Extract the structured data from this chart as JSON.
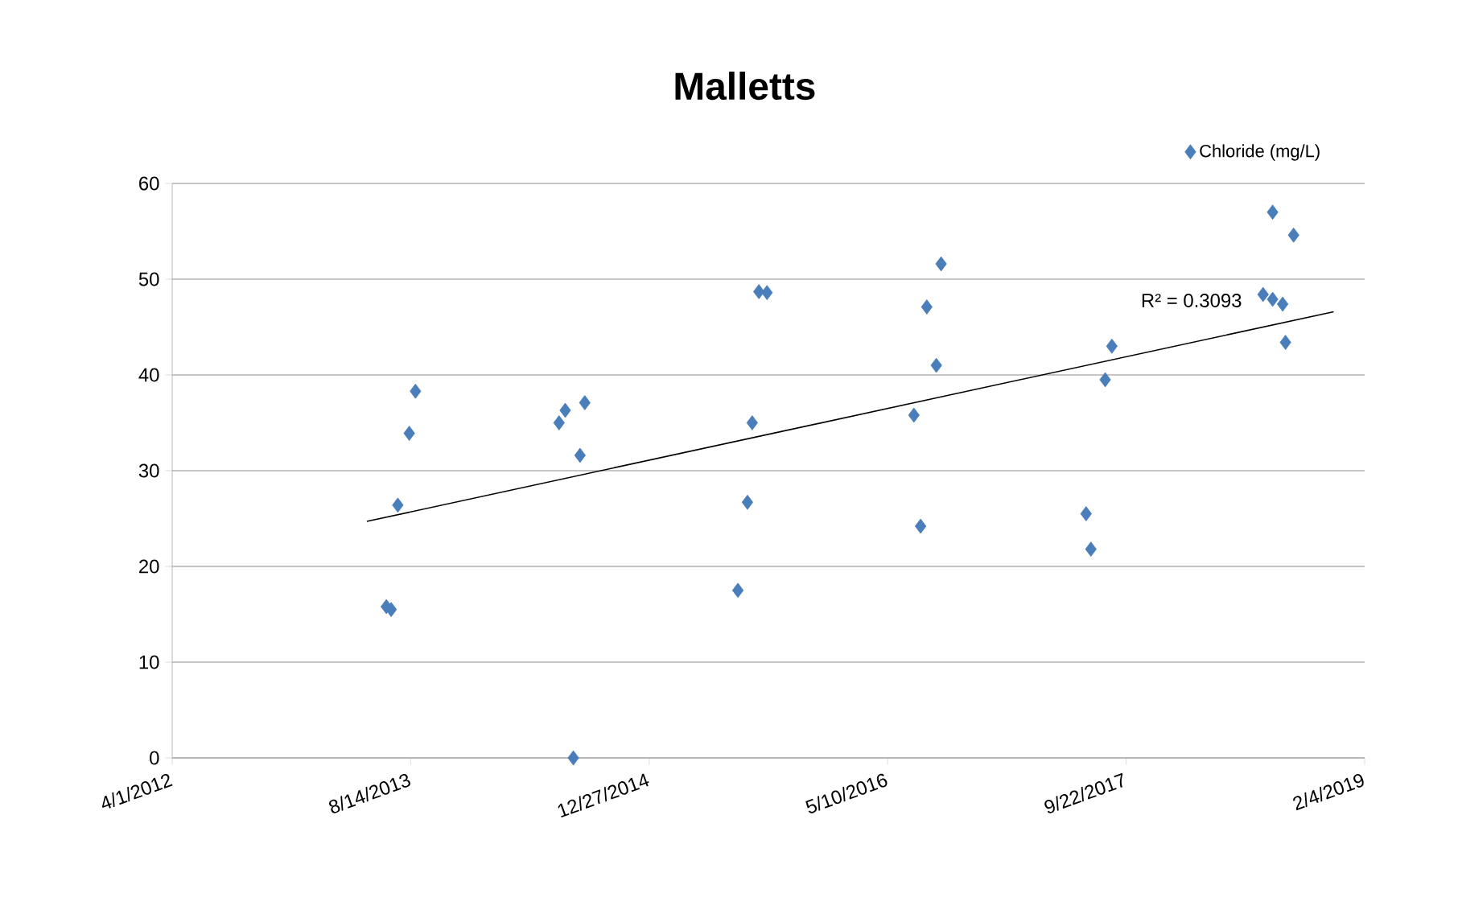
{
  "chart_data": {
    "type": "scatter",
    "title": "Malletts",
    "series": [
      {
        "name": "Chloride (mg/L)",
        "color": "#4a7ebb",
        "marker": "diamond",
        "x": [
          "2013-06-24",
          "2013-07-04",
          "2013-07-18",
          "2013-08-11",
          "2013-08-24",
          "2014-06-21",
          "2014-07-04",
          "2014-07-21",
          "2014-08-04",
          "2014-08-14",
          "2015-07-01",
          "2015-07-21",
          "2015-07-31",
          "2015-08-14",
          "2015-08-31",
          "2016-07-04",
          "2016-07-18",
          "2016-07-31",
          "2016-08-20",
          "2016-08-30",
          "2017-06-30",
          "2017-07-10",
          "2017-08-09",
          "2017-08-23",
          "2018-07-06",
          "2018-07-26",
          "2018-07-26",
          "2018-08-16",
          "2018-08-22",
          "2018-09-08"
        ],
        "values": [
          15.8,
          15.5,
          26.4,
          33.9,
          38.3,
          35.0,
          36.3,
          0,
          31.6,
          37.1,
          17.5,
          26.7,
          35.0,
          48.7,
          48.6,
          35.8,
          24.2,
          47.1,
          41.0,
          51.6,
          25.5,
          21.8,
          39.5,
          43.0,
          48.4,
          57.0,
          47.9,
          47.4,
          43.4,
          54.6
        ]
      },
      {
        "type": "line",
        "color": "#000000",
        "marker": "none",
        "x": [
          "2013-05-14",
          "2018-12-01"
        ],
        "values": [
          24.7,
          46.6
        ]
      }
    ],
    "annotations": [
      "R² = 0.3093"
    ],
    "xlim": [
      "2012-04-01",
      "2019-02-04"
    ],
    "xticks": [
      {
        "value": "2012-04-01",
        "label": "4/1/2012"
      },
      {
        "value": "2013-08-14",
        "label": "8/14/2013"
      },
      {
        "value": "2014-12-27",
        "label": "12/27/2014"
      },
      {
        "value": "2016-05-10",
        "label": "5/10/2016"
      },
      {
        "value": "2017-09-22",
        "label": "9/22/2017"
      },
      {
        "value": "2019-02-04",
        "label": "2/4/2019"
      }
    ],
    "ylim": [
      0,
      60
    ],
    "yticks": [
      0,
      10,
      20,
      30,
      40,
      50,
      60
    ],
    "grid": "y",
    "legend": "top right"
  }
}
